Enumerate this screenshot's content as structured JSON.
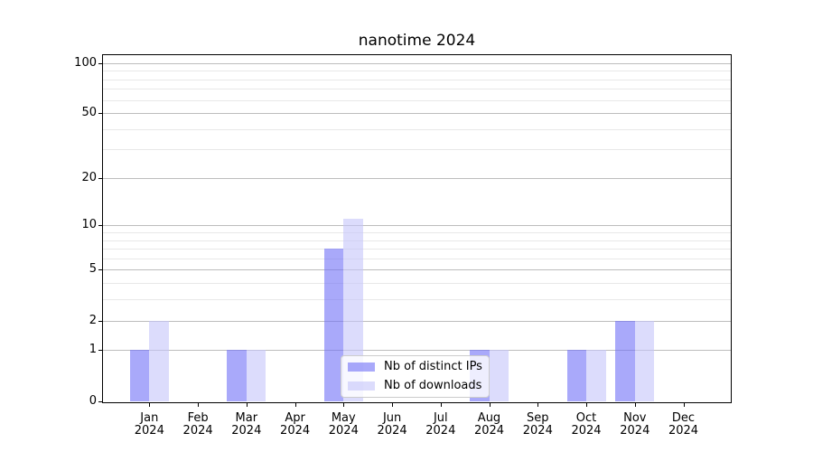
{
  "title": "nanotime 2024",
  "chart_data": {
    "type": "bar",
    "title": "nanotime 2024",
    "x_year_label": "2024",
    "categories": [
      "Jan",
      "Feb",
      "Mar",
      "Apr",
      "May",
      "Jun",
      "Jul",
      "Aug",
      "Sep",
      "Oct",
      "Nov",
      "Dec"
    ],
    "series": [
      {
        "name": "Nb of distinct IPs",
        "color": "#7070f7",
        "alpha": 0.6,
        "values": [
          1,
          0,
          1,
          0,
          7,
          0,
          0,
          1,
          0,
          1,
          2,
          0
        ]
      },
      {
        "name": "Nb of downloads",
        "color": "#c5c5fa",
        "alpha": 0.6,
        "values": [
          2,
          0,
          1,
          0,
          11,
          0,
          0,
          1,
          0,
          1,
          2,
          0
        ]
      }
    ],
    "y_scale": "log1p",
    "y_axis": {
      "major_ticks": [
        0,
        1,
        2,
        5,
        10,
        20,
        50,
        100
      ],
      "minor_ticks": [
        3,
        4,
        6,
        7,
        8,
        9,
        30,
        40,
        60,
        70,
        80,
        90
      ]
    },
    "ylim": [
      0,
      113
    ],
    "grid": {
      "major_color": "#bdbdbd",
      "minor_color": "#e8e8e8"
    },
    "legend": {
      "location": "lower-center"
    },
    "colors": {
      "spine": "#000000",
      "text": "#000000",
      "background": "#ffffff"
    }
  }
}
